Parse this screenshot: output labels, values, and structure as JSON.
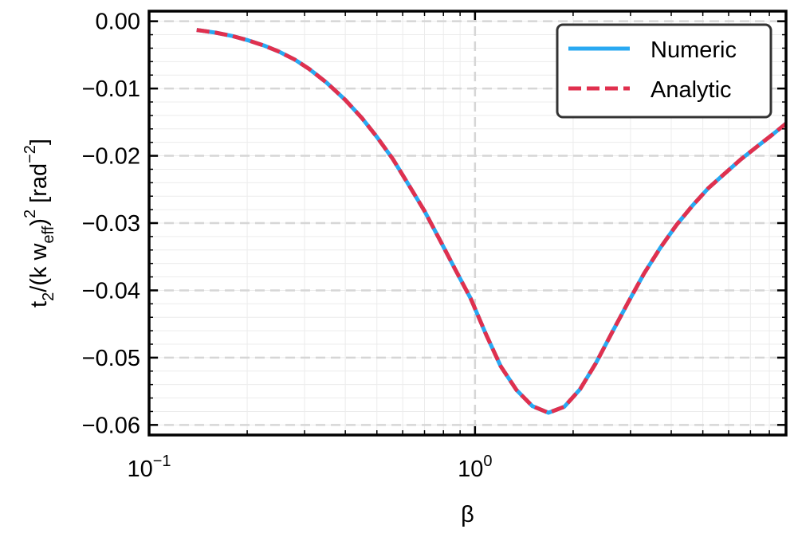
{
  "chart_data": {
    "type": "line",
    "xscale": "log",
    "xlim": [
      0.1,
      9.0
    ],
    "ylim": [
      -0.0615,
      0.0015
    ],
    "xlabel": "β",
    "ylabel": {
      "base": "t",
      "sub1": "2",
      "mid": "/(k w",
      "sub2": "eff",
      "close": ")",
      "sup1": "2",
      "unit": " [rad",
      "sup2": "−2",
      "end": "]"
    },
    "x_ticks": [
      {
        "value": 0.1,
        "base": "10",
        "exp": "−1"
      },
      {
        "value": 1.0,
        "base": "10",
        "exp": "0"
      }
    ],
    "y_ticks": [
      {
        "value": 0.0,
        "label": "0.00"
      },
      {
        "value": -0.01,
        "label": "−0.01"
      },
      {
        "value": -0.02,
        "label": "−0.02"
      },
      {
        "value": -0.03,
        "label": "−0.03"
      },
      {
        "value": -0.04,
        "label": "−0.04"
      },
      {
        "value": -0.05,
        "label": "−0.05"
      },
      {
        "value": -0.06,
        "label": "−0.06"
      }
    ],
    "grid": true,
    "legend_position": "top-right",
    "series": [
      {
        "name": "Numeric",
        "color": "#29A9F2",
        "style": "solid",
        "x": [
          0.14,
          0.16,
          0.18,
          0.2,
          0.225,
          0.25,
          0.28,
          0.31,
          0.35,
          0.4,
          0.45,
          0.5,
          0.56,
          0.62,
          0.7,
          0.78,
          0.87,
          0.97,
          1.08,
          1.2,
          1.34,
          1.5,
          1.68,
          1.88,
          2.1,
          2.35,
          2.63,
          2.95,
          3.3,
          3.7,
          4.15,
          4.65,
          5.2,
          5.85,
          6.55,
          7.35,
          8.2,
          9.0
        ],
        "y": [
          -0.0013,
          -0.0017,
          -0.0022,
          -0.0028,
          -0.0036,
          -0.0045,
          -0.0057,
          -0.0071,
          -0.0091,
          -0.0117,
          -0.0144,
          -0.0172,
          -0.0205,
          -0.024,
          -0.0282,
          -0.0325,
          -0.0369,
          -0.0412,
          -0.0465,
          -0.0513,
          -0.0548,
          -0.0572,
          -0.0582,
          -0.0573,
          -0.0547,
          -0.0508,
          -0.0463,
          -0.0418,
          -0.0375,
          -0.0337,
          -0.0303,
          -0.0274,
          -0.0248,
          -0.0226,
          -0.0205,
          -0.0186,
          -0.0168,
          -0.0152
        ]
      },
      {
        "name": "Analytic",
        "color": "#E0304E",
        "style": "dashed",
        "x": [
          0.14,
          0.16,
          0.18,
          0.2,
          0.225,
          0.25,
          0.28,
          0.31,
          0.35,
          0.4,
          0.45,
          0.5,
          0.56,
          0.62,
          0.7,
          0.78,
          0.87,
          0.97,
          1.08,
          1.2,
          1.34,
          1.5,
          1.68,
          1.88,
          2.1,
          2.35,
          2.63,
          2.95,
          3.3,
          3.7,
          4.15,
          4.65,
          5.2,
          5.85,
          6.55,
          7.35,
          8.2,
          9.0
        ],
        "y": [
          -0.0013,
          -0.0017,
          -0.0022,
          -0.0028,
          -0.0036,
          -0.0045,
          -0.0057,
          -0.0071,
          -0.0091,
          -0.0117,
          -0.0144,
          -0.0172,
          -0.0205,
          -0.024,
          -0.0282,
          -0.0325,
          -0.0369,
          -0.0412,
          -0.0465,
          -0.0513,
          -0.0548,
          -0.0572,
          -0.0582,
          -0.0573,
          -0.0547,
          -0.0508,
          -0.0463,
          -0.0418,
          -0.0375,
          -0.0337,
          -0.0303,
          -0.0274,
          -0.0248,
          -0.0226,
          -0.0205,
          -0.0186,
          -0.0168,
          -0.0152
        ]
      }
    ]
  }
}
